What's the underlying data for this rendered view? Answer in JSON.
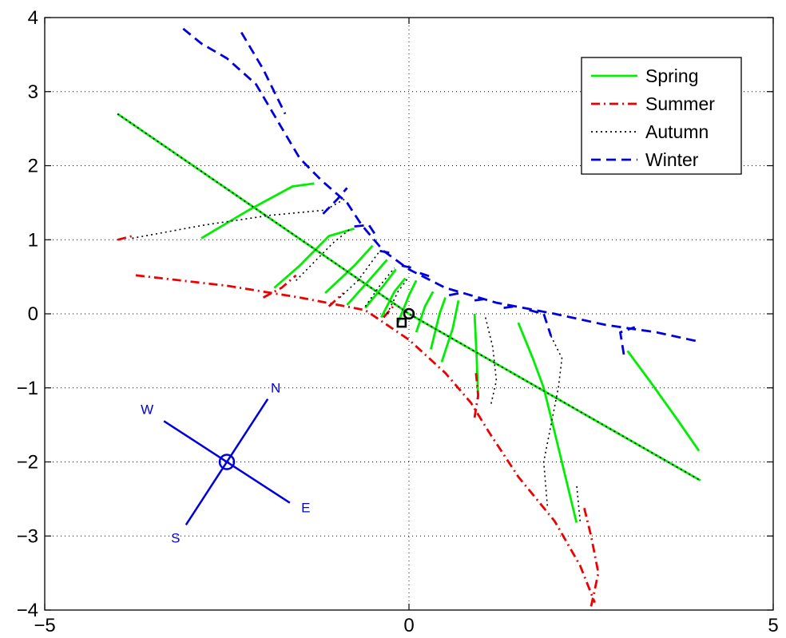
{
  "chart_data": {
    "type": "line",
    "title": "",
    "xlabel": "",
    "ylabel": "",
    "xlim": [
      -5,
      5
    ],
    "ylim": [
      -4,
      4
    ],
    "x_ticks": [
      "−5",
      "0",
      "5"
    ],
    "y_ticks": [
      "4",
      "3",
      "2",
      "1",
      "0",
      "−1",
      "−2",
      "−3",
      "−4"
    ],
    "grid": "dotted",
    "legend_position": "top-right",
    "colors": {
      "spring": "#00ee00",
      "summer": "#ee0000",
      "autumn": "#000000",
      "winter": "#0000dd",
      "compass": "#0000dd"
    },
    "legend": [
      {
        "label": "Spring",
        "style": "solid",
        "color": "#00ee00"
      },
      {
        "label": "Summer",
        "style": "dashdot",
        "color": "#ee0000"
      },
      {
        "label": "Autumn",
        "style": "dotted",
        "color": "#000000"
      },
      {
        "label": "Winter",
        "style": "dashed",
        "color": "#0000dd"
      }
    ],
    "series": [
      {
        "name": "Spring",
        "style": "solid",
        "color": "#00ee00",
        "segments": [
          [
            [
              -4.0,
              2.7
            ],
            [
              0.0,
              0.0
            ],
            [
              4.0,
              -2.25
            ]
          ],
          [
            [
              -2.85,
              1.02
            ],
            [
              -2.2,
              1.4
            ],
            [
              -1.6,
              1.72
            ],
            [
              -1.3,
              1.76
            ]
          ],
          [
            [
              -1.85,
              0.35
            ],
            [
              -1.5,
              0.65
            ],
            [
              -1.1,
              1.05
            ],
            [
              -0.75,
              1.15
            ]
          ],
          [
            [
              -1.15,
              0.28
            ],
            [
              -0.75,
              0.65
            ],
            [
              -0.5,
              0.92
            ]
          ],
          [
            [
              -0.85,
              0.12
            ],
            [
              -0.55,
              0.45
            ],
            [
              -0.3,
              0.73
            ]
          ],
          [
            [
              -0.6,
              0.08
            ],
            [
              -0.35,
              0.38
            ],
            [
              -0.18,
              0.6
            ]
          ],
          [
            [
              -0.38,
              -0.05
            ],
            [
              -0.2,
              0.3
            ],
            [
              -0.05,
              0.48
            ]
          ],
          [
            [
              -0.15,
              -0.12
            ],
            [
              0.0,
              0.25
            ],
            [
              0.1,
              0.45
            ]
          ],
          [
            [
              0.1,
              -0.25
            ],
            [
              0.22,
              0.1
            ],
            [
              0.33,
              0.3
            ]
          ],
          [
            [
              0.3,
              -0.48
            ],
            [
              0.42,
              0.0
            ],
            [
              0.5,
              0.22
            ]
          ],
          [
            [
              0.45,
              -0.65
            ],
            [
              0.6,
              -0.2
            ],
            [
              0.68,
              0.18
            ]
          ],
          [
            [
              0.95,
              -1.15
            ],
            [
              0.93,
              -0.6
            ],
            [
              0.9,
              0.0
            ]
          ],
          [
            [
              1.5,
              -0.12
            ],
            [
              1.7,
              -0.6
            ],
            [
              1.85,
              -1.0
            ],
            [
              2.0,
              -1.6
            ],
            [
              2.3,
              -2.82
            ]
          ],
          [
            [
              3.0,
              -0.5
            ],
            [
              3.3,
              -0.9
            ],
            [
              3.7,
              -1.45
            ],
            [
              3.98,
              -1.85
            ]
          ]
        ]
      },
      {
        "name": "Summer",
        "style": "dashdot",
        "color": "#ee0000",
        "segments": [
          [
            [
              -3.75,
              0.52
            ],
            [
              -2.5,
              0.38
            ],
            [
              -1.5,
              0.22
            ],
            [
              -0.6,
              0.05
            ],
            [
              0.0,
              -0.35
            ],
            [
              0.5,
              -0.8
            ],
            [
              0.85,
              -1.2
            ],
            [
              1.1,
              -1.6
            ],
            [
              1.5,
              -2.2
            ],
            [
              2.0,
              -2.8
            ],
            [
              2.35,
              -3.4
            ],
            [
              2.55,
              -3.9
            ]
          ],
          [
            [
              -4.0,
              1.0
            ],
            [
              -3.8,
              1.05
            ]
          ],
          [
            [
              -2.0,
              0.22
            ],
            [
              -1.75,
              0.35
            ],
            [
              -1.55,
              0.52
            ]
          ],
          [
            [
              -1.1,
              0.1
            ],
            [
              -0.9,
              0.28
            ]
          ],
          [
            [
              -0.35,
              -0.05
            ],
            [
              -0.2,
              0.12
            ]
          ],
          [
            [
              0.9,
              -1.4
            ],
            [
              0.95,
              -1.1
            ],
            [
              0.92,
              -0.8
            ]
          ],
          [
            [
              2.5,
              -3.95
            ],
            [
              2.6,
              -3.5
            ],
            [
              2.5,
              -3.0
            ],
            [
              2.4,
              -2.6
            ]
          ]
        ]
      },
      {
        "name": "Autumn",
        "style": "dotted",
        "color": "#000000",
        "segments": [
          [
            [
              -4.0,
              2.7
            ],
            [
              0.0,
              0.0
            ],
            [
              4.0,
              -2.25
            ]
          ],
          [
            [
              -3.8,
              1.02
            ],
            [
              -2.8,
              1.2
            ],
            [
              -1.9,
              1.33
            ],
            [
              -1.15,
              1.4
            ],
            [
              -0.88,
              1.55
            ]
          ],
          [
            [
              -1.55,
              0.45
            ],
            [
              -1.3,
              0.7
            ],
            [
              -1.05,
              0.95
            ],
            [
              -0.8,
              1.15
            ]
          ],
          [
            [
              -0.95,
              0.22
            ],
            [
              -0.7,
              0.45
            ],
            [
              -0.4,
              0.85
            ]
          ],
          [
            [
              -0.6,
              0.1
            ],
            [
              -0.4,
              0.38
            ],
            [
              -0.2,
              0.62
            ]
          ],
          [
            [
              -0.3,
              0.0
            ],
            [
              -0.15,
              0.3
            ],
            [
              0.0,
              0.5
            ]
          ],
          [
            [
              1.05,
              -0.05
            ],
            [
              1.15,
              -0.45
            ],
            [
              1.2,
              -0.9
            ],
            [
              1.12,
              -1.25
            ]
          ],
          [
            [
              1.95,
              -0.3
            ],
            [
              2.1,
              -0.6
            ],
            [
              2.05,
              -1.0
            ],
            [
              1.95,
              -1.5
            ],
            [
              1.85,
              -2.0
            ],
            [
              1.9,
              -2.6
            ]
          ],
          [
            [
              2.35,
              -2.8
            ],
            [
              2.3,
              -2.3
            ]
          ]
        ]
      },
      {
        "name": "Winter",
        "style": "dashed",
        "color": "#0000dd",
        "segments": [
          [
            [
              -3.1,
              3.85
            ],
            [
              -2.85,
              3.65
            ],
            [
              -2.5,
              3.45
            ],
            [
              -2.1,
              3.1
            ],
            [
              -1.8,
              2.6
            ],
            [
              -1.5,
              2.1
            ],
            [
              -1.2,
              1.8
            ],
            [
              -0.85,
              1.5
            ],
            [
              -0.65,
              1.2
            ],
            [
              -0.35,
              0.85
            ],
            [
              0.0,
              0.6
            ],
            [
              0.5,
              0.35
            ],
            [
              1.2,
              0.15
            ],
            [
              2.0,
              0.0
            ],
            [
              2.7,
              -0.15
            ],
            [
              3.4,
              -0.25
            ],
            [
              4.0,
              -0.38
            ]
          ],
          [
            [
              -2.3,
              3.8
            ],
            [
              -2.0,
              3.3
            ],
            [
              -1.7,
              2.7
            ]
          ],
          [
            [
              -1.18,
              1.35
            ],
            [
              -0.98,
              1.55
            ],
            [
              -0.85,
              1.7
            ]
          ],
          [
            [
              -0.75,
              1.18
            ],
            [
              -0.55,
              1.2
            ],
            [
              -0.45,
              1.05
            ]
          ],
          [
            [
              -0.4,
              0.85
            ],
            [
              -0.25,
              0.82
            ]
          ],
          [
            [
              -0.1,
              0.65
            ],
            [
              0.05,
              0.62
            ]
          ],
          [
            [
              0.15,
              0.55
            ],
            [
              0.3,
              0.5
            ]
          ],
          [
            [
              0.55,
              0.25
            ],
            [
              0.7,
              0.28
            ]
          ],
          [
            [
              0.9,
              0.18
            ],
            [
              1.05,
              0.2
            ]
          ],
          [
            [
              1.3,
              0.08
            ],
            [
              1.45,
              0.1
            ]
          ],
          [
            [
              1.65,
              0.05
            ],
            [
              1.85,
              0.0
            ],
            [
              1.95,
              -0.3
            ]
          ],
          [
            [
              2.95,
              -0.55
            ],
            [
              2.9,
              -0.25
            ],
            [
              3.1,
              -0.18
            ]
          ]
        ]
      }
    ],
    "markers": [
      {
        "type": "circle",
        "x": 0.0,
        "y": 0.0
      },
      {
        "type": "square",
        "x": -0.1,
        "y": -0.12
      }
    ],
    "compass": {
      "center": [
        -2.5,
        -2.0
      ],
      "labels": {
        "north": "N",
        "south": "S",
        "east": "E",
        "west": "W"
      }
    }
  }
}
